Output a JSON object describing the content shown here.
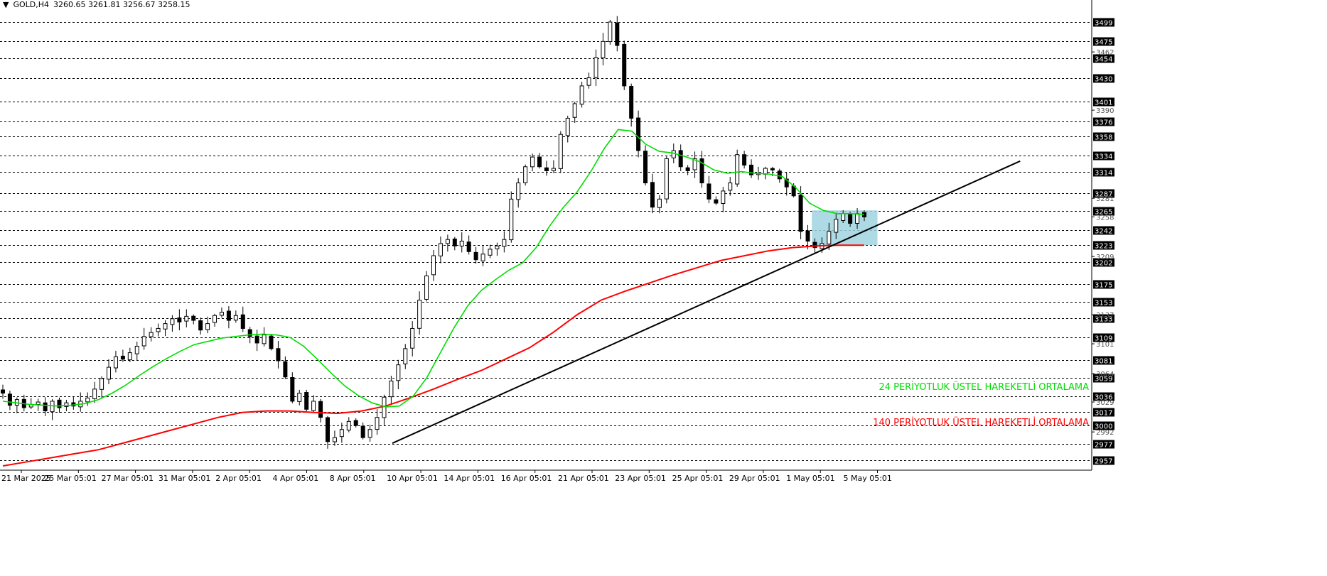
{
  "header": {
    "arrow": "▼",
    "symbol": "GOLD,H4",
    "ohlc": "3260.65 3261.81 3256.67 3258.15"
  },
  "colors": {
    "ema24": "#00dd00",
    "ema140": "#ff0000",
    "trendline": "#000000",
    "box": "#9fd4df",
    "grid": "#000000"
  },
  "chart_data": {
    "type": "candlestick",
    "symbol": "GOLD",
    "timeframe": "H4",
    "ylim": [
      2945,
      3510
    ],
    "h_levels": [
      3499,
      3475,
      3454,
      3430,
      3401,
      3376,
      3358,
      3334,
      3314,
      3287,
      3265,
      3242,
      3223,
      3202,
      3175,
      3153,
      3133,
      3109,
      3081,
      3059,
      3036,
      3017,
      3000,
      2977,
      2957
    ],
    "axis_ticks": [
      3462,
      3390,
      3281,
      3258,
      3209,
      3137,
      3101,
      3064,
      3029,
      2992
    ],
    "x_labels": [
      "21 Mar 2025",
      "25 Mar 05:01",
      "27 Mar 05:01",
      "31 Mar 05:01",
      "2 Apr 05:01",
      "4 Apr 05:01",
      "8 Apr 05:01",
      "10 Apr 05:01",
      "14 Apr 05:01",
      "16 Apr 05:01",
      "21 Apr 05:01",
      "23 Apr 05:01",
      "25 Apr 05:01",
      "29 Apr 05:01",
      "1 May 05:01",
      "5 May 05:01"
    ],
    "price_path": [
      3040,
      3025,
      3032,
      3022,
      3026,
      3029,
      3018,
      3030,
      3022,
      3028,
      3024,
      3030,
      3034,
      3045,
      3058,
      3072,
      3085,
      3082,
      3090,
      3098,
      3110,
      3115,
      3120,
      3126,
      3132,
      3128,
      3135,
      3130,
      3118,
      3126,
      3136,
      3140,
      3130,
      3136,
      3120,
      3110,
      3102,
      3112,
      3095,
      3080,
      3060,
      3030,
      3040,
      3020,
      3030,
      3010,
      2980,
      2985,
      2995,
      3005,
      3000,
      2985,
      2995,
      3010,
      3035,
      3055,
      3075,
      3095,
      3120,
      3155,
      3185,
      3210,
      3225,
      3230,
      3222,
      3228,
      3215,
      3205,
      3212,
      3218,
      3222,
      3230,
      3280,
      3300,
      3320,
      3332,
      3320,
      3315,
      3318,
      3360,
      3380,
      3398,
      3420,
      3430,
      3455,
      3475,
      3499,
      3470,
      3420,
      3380,
      3340,
      3300,
      3270,
      3280,
      3330,
      3340,
      3320,
      3315,
      3330,
      3300,
      3280,
      3275,
      3290,
      3300,
      3335,
      3322,
      3310,
      3312,
      3318,
      3316,
      3305,
      3295,
      3284,
      3240,
      3228,
      3220,
      3225,
      3240,
      3255,
      3262,
      3250,
      3262,
      3258
    ],
    "ema24_path": [
      3030,
      3028,
      3026,
      3025,
      3024,
      3025,
      3027,
      3032,
      3040,
      3050,
      3062,
      3073,
      3083,
      3092,
      3100,
      3104,
      3108,
      3110,
      3112,
      3113,
      3112,
      3109,
      3098,
      3082,
      3065,
      3049,
      3037,
      3028,
      3023,
      3024,
      3036,
      3059,
      3090,
      3121,
      3148,
      3167,
      3180,
      3192,
      3201,
      3220,
      3247,
      3270,
      3289,
      3314,
      3343,
      3366,
      3364,
      3348,
      3339,
      3337,
      3332,
      3326,
      3316,
      3312,
      3314,
      3312,
      3311,
      3308,
      3294,
      3275,
      3266,
      3262,
      3262,
      3261
    ],
    "ema140_path": [
      2950,
      2955,
      2960,
      2965,
      2970,
      2978,
      2986,
      2994,
      3002,
      3010,
      3016,
      3018,
      3018,
      3016,
      3015,
      3018,
      3024,
      3034,
      3045,
      3057,
      3068,
      3082,
      3096,
      3115,
      3137,
      3155,
      3166,
      3176,
      3186,
      3195,
      3204,
      3210,
      3216,
      3220,
      3222,
      3223,
      3223
    ],
    "trendline": {
      "from": [
        6.5,
        2978
      ],
      "to": [
        17.5,
        3327
      ]
    },
    "consolidation_box": {
      "x": [
        14.0,
        15.0
      ],
      "y": [
        3223,
        3266
      ]
    },
    "annotations": [
      {
        "text": "24 PERİYOTLUK ÜSTEL HAREKETLİ ORTALAMA",
        "color": "#00dd00"
      },
      {
        "text": "140 PERİYOTLUK ÜSTEL HAREKETLİ ORTALAMA",
        "color": "#ff0000"
      }
    ]
  }
}
